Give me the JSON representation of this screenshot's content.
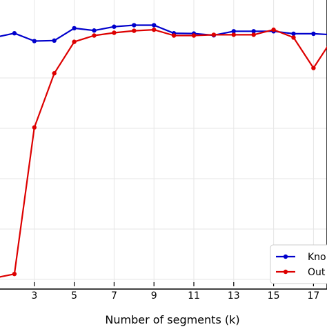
{
  "chart_data": {
    "type": "line",
    "title": "",
    "xlabel": "Number of segments (k)",
    "ylabel": "",
    "x": [
      1,
      2,
      3,
      4,
      5,
      6,
      7,
      8,
      9,
      10,
      11,
      12,
      13,
      14,
      15,
      16,
      17,
      18
    ],
    "xticks": [
      "3",
      "5",
      "7",
      "9",
      "11",
      "13",
      "15",
      "17"
    ],
    "xlim": [
      1,
      18
    ],
    "ylim": [
      0,
      1
    ],
    "grid": true,
    "legend_position": "bottom-right",
    "series": [
      {
        "name": "Kno",
        "color": "#0000cc",
        "values": [
          0.955,
          0.972,
          0.941,
          0.943,
          0.992,
          0.983,
          0.998,
          1.004,
          1.004,
          0.972,
          0.971,
          0.964,
          0.98,
          0.98,
          0.98,
          0.97,
          0.97,
          0.966
        ]
      },
      {
        "name": "Out",
        "color": "#dd0000",
        "values": [
          0.0,
          0.016,
          0.598,
          0.813,
          0.938,
          0.963,
          0.974,
          0.982,
          0.986,
          0.963,
          0.963,
          0.966,
          0.966,
          0.966,
          0.986,
          0.955,
          0.834,
          0.955
        ]
      }
    ]
  }
}
